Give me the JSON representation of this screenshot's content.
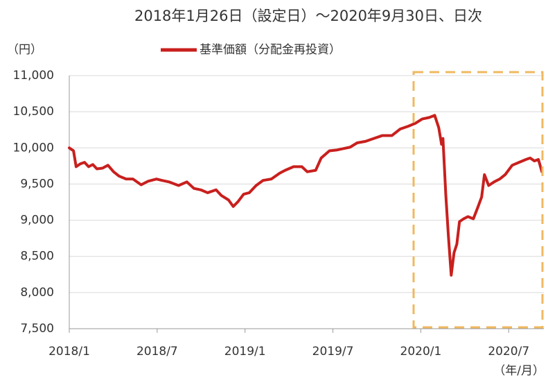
{
  "chart_data": {
    "type": "line",
    "title": "2018年1月26日（設定日）～2020年9月30日、日次",
    "y_unit": "（円）",
    "x_unit": "（年/月）",
    "x": [
      2018.0,
      2018.024,
      2018.039,
      2018.063,
      2018.087,
      2018.11,
      2018.134,
      2018.157,
      2018.189,
      2018.22,
      2018.252,
      2018.283,
      2018.323,
      2018.362,
      2018.409,
      2018.449,
      2018.496,
      2018.528,
      2018.567,
      2018.622,
      2018.669,
      2018.709,
      2018.748,
      2018.787,
      2018.835,
      2018.866,
      2018.906,
      2018.933,
      2018.961,
      2018.992,
      2019.024,
      2019.063,
      2019.102,
      2019.15,
      2019.197,
      2019.228,
      2019.276,
      2019.323,
      2019.354,
      2019.402,
      2019.433,
      2019.48,
      2019.52,
      2019.559,
      2019.598,
      2019.638,
      2019.685,
      2019.732,
      2019.78,
      2019.835,
      2019.882,
      2019.929,
      2019.969,
      2020.008,
      2020.047,
      2020.079,
      2020.102,
      2020.118,
      2020.126,
      2020.142,
      2020.157,
      2020.173,
      2020.189,
      2020.205,
      2020.22,
      2020.244,
      2020.268,
      2020.299,
      2020.323,
      2020.346,
      2020.362,
      2020.386,
      2020.417,
      2020.449,
      2020.48,
      2020.52,
      2020.559,
      2020.598,
      2020.622,
      2020.646,
      2020.669,
      2020.689
    ],
    "series": [
      {
        "name": "基準価額（分配金再投資）",
        "color": "#c8201e",
        "values": [
          10000,
          9960,
          9740,
          9780,
          9800,
          9740,
          9770,
          9710,
          9720,
          9760,
          9670,
          9610,
          9570,
          9570,
          9490,
          9540,
          9570,
          9550,
          9530,
          9480,
          9530,
          9440,
          9420,
          9380,
          9420,
          9340,
          9280,
          9190,
          9260,
          9360,
          9380,
          9480,
          9550,
          9570,
          9650,
          9690,
          9740,
          9740,
          9670,
          9690,
          9860,
          9960,
          9970,
          9990,
          10010,
          10070,
          10090,
          10130,
          10170,
          10170,
          10260,
          10300,
          10340,
          10400,
          10420,
          10450,
          10280,
          10050,
          10130,
          9360,
          8780,
          8240,
          8550,
          8670,
          8980,
          9020,
          9050,
          9020,
          9170,
          9320,
          9630,
          9480,
          9530,
          9570,
          9630,
          9760,
          9800,
          9840,
          9860,
          9820,
          9840,
          9670
        ]
      }
    ],
    "xlim": [
      2018.0,
      2020.7
    ],
    "xticks": [
      {
        "value": 2018.0,
        "label": "2018/1"
      },
      {
        "value": 2018.5,
        "label": "2018/7"
      },
      {
        "value": 2019.0,
        "label": "2019/1"
      },
      {
        "value": 2019.5,
        "label": "2019/7"
      },
      {
        "value": 2020.0,
        "label": "2020/1"
      },
      {
        "value": 2020.5,
        "label": "2020/7"
      }
    ],
    "ylim": [
      7500,
      11000
    ],
    "yticks": [
      {
        "value": 7500,
        "label": "7,500"
      },
      {
        "value": 8000,
        "label": "8,000"
      },
      {
        "value": 8500,
        "label": "8,500"
      },
      {
        "value": 9000,
        "label": "9,000"
      },
      {
        "value": 9500,
        "label": "9,500"
      },
      {
        "value": 10000,
        "label": "10,000"
      },
      {
        "value": 10500,
        "label": "10,500"
      },
      {
        "value": 11000,
        "label": "11,000"
      }
    ],
    "grid": true
  }
}
